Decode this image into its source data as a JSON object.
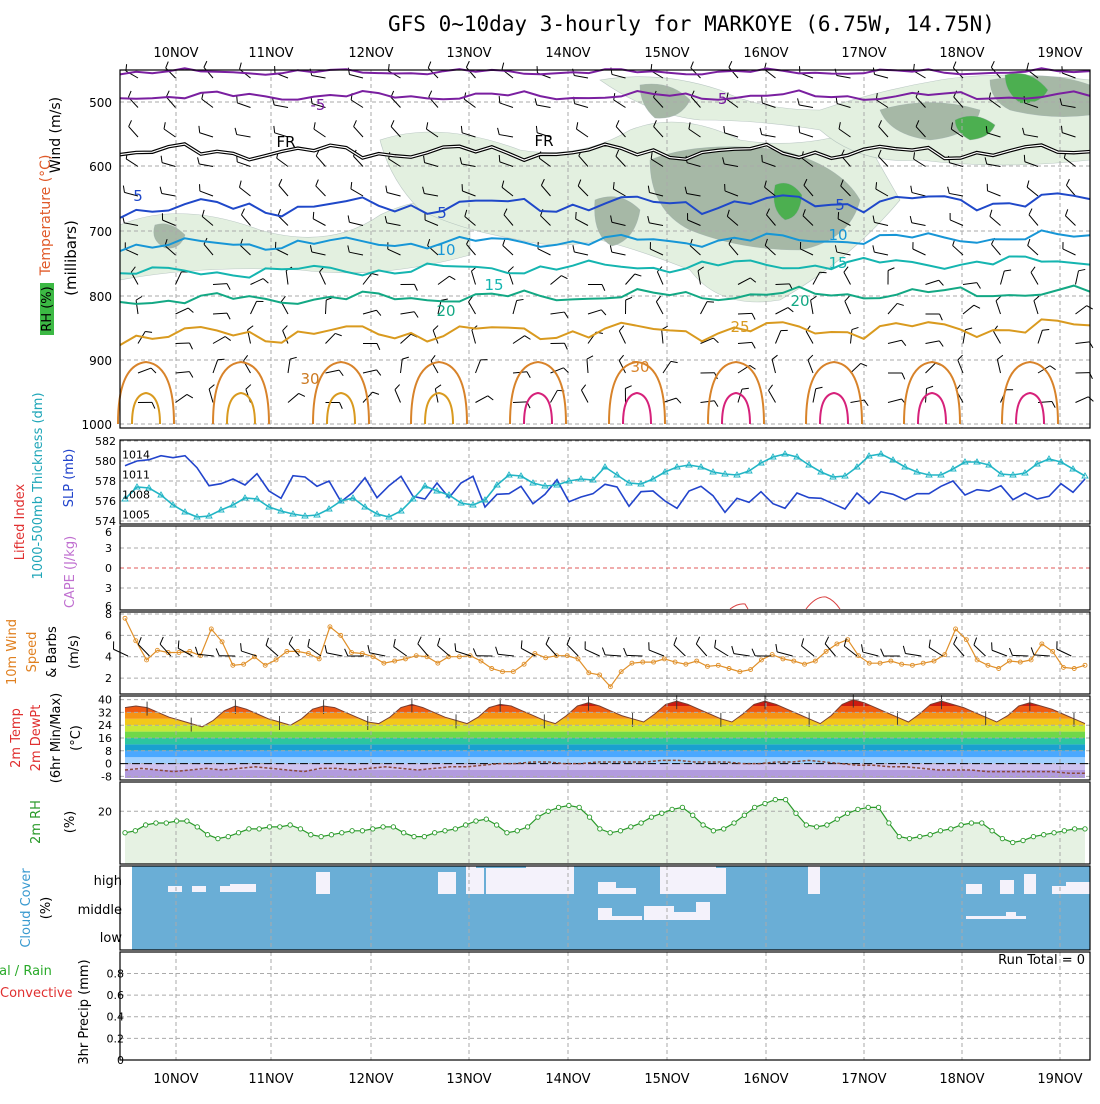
{
  "title": "GFS 0~10day 3-hourly for MARKOYE (6.75W, 14.75N)",
  "dates": [
    "10NOV",
    "11NOV",
    "12NOV",
    "13NOV",
    "14NOV",
    "15NOV",
    "16NOV",
    "17NOV",
    "18NOV",
    "19NOV"
  ],
  "colors": {
    "grid": "#aaaaaa",
    "rh_fill": "#e3f0e0",
    "rh_dark": "#a6b8a6",
    "green": "#4caf50",
    "sky": "#6aaed6",
    "white": "#f4f2fb"
  },
  "panels": {
    "upper": {
      "ylabel_wind": "Wind (m/s)",
      "ylabel_temp": "Temperature (°C)",
      "ylabel_rh": "RH (%)",
      "ylabel_mb": "(millibars)",
      "levels": [
        "500",
        "600",
        "700",
        "800",
        "900",
        "1000"
      ],
      "contour_labels": [
        {
          "t": "-5",
          "c": "#7a1fa0"
        },
        {
          "t": "-5",
          "c": "#7a1fa0"
        },
        {
          "t": "FR",
          "c": "#000000"
        },
        {
          "t": "FR",
          "c": "#000000"
        },
        {
          "t": "5",
          "c": "#1f48c9"
        },
        {
          "t": "5",
          "c": "#1f48c9"
        },
        {
          "t": "5",
          "c": "#1f48c9"
        },
        {
          "t": "10",
          "c": "#1796d6"
        },
        {
          "t": "10",
          "c": "#1796d6"
        },
        {
          "t": "15",
          "c": "#15b5b0"
        },
        {
          "t": "15",
          "c": "#15b5b0"
        },
        {
          "t": "20",
          "c": "#13a884"
        },
        {
          "t": "20",
          "c": "#13a884"
        },
        {
          "t": "25",
          "c": "#d99a1f"
        },
        {
          "t": "30",
          "c": "#d8832a"
        },
        {
          "t": "30",
          "c": "#cc7a22"
        }
      ]
    },
    "thickness": {
      "ylabel_left": "1000-500mb Thickness (dm)",
      "ylabel_right": "SLP (mb)",
      "left_ticks": [
        "582",
        "580",
        "578",
        "576",
        "574"
      ],
      "right_ticks": [
        "1014",
        "1011",
        "1008",
        "1005"
      ]
    },
    "cape": {
      "ylabel_li": "Lifted Index",
      "ylabel_cape": "CAPE (J/kg)",
      "ticks": [
        "6",
        "3",
        "0",
        "3",
        "6"
      ]
    },
    "wind10m": {
      "ylabel_a": "10m Wind",
      "ylabel_b": "Speed",
      "ylabel_c": "& Barbs",
      "ylabel_unit": "(m/s)",
      "ticks": [
        "8",
        "6",
        "4",
        "2"
      ]
    },
    "temp2m": {
      "ylabel_a": "2m Temp",
      "ylabel_b": "2m DewPt",
      "ylabel_c": "(6hr Min/Max)",
      "ylabel_unit": "(°C)",
      "ticks": [
        "40",
        "32",
        "24",
        "16",
        "8",
        "0",
        "-8"
      ]
    },
    "rh2m": {
      "ylabel": "2m RH",
      "ylabel_unit": "(%)",
      "ticks": [
        "20"
      ]
    },
    "cloud": {
      "ylabel": "Cloud Cover",
      "ylabel_unit": "(%)",
      "ticks": [
        "high",
        "middle",
        "low"
      ]
    },
    "precip": {
      "ylabel_a": "tal / Rain",
      "ylabel_b": "Convective",
      "ylabel_c": "3hr Precip (mm)",
      "run_total": "Run Total = 0",
      "ticks": [
        "0.8",
        "0.6",
        "0.4",
        "0.2",
        "0"
      ]
    }
  },
  "chart_data": [
    {
      "type": "line",
      "name": "1000-500mb thickness / SLP",
      "series": [
        {
          "name": "SLP (mb)",
          "color": "#2244cc",
          "axis": "right",
          "values": [
            1012.3,
            1013.0,
            1013.2,
            1013.8,
            1013.5,
            1013.8,
            1012.0,
            1009.3,
            1009.6,
            1010.3,
            1009.4,
            1011.1,
            1008.5,
            1007.4,
            1010.8,
            1010.6,
            1009.2,
            1010.0,
            1006.9,
            1008.3,
            1010.5,
            1007.5,
            1009.3,
            1010.7,
            1007.7,
            1007.3,
            1009.7,
            1007.5,
            1009.7,
            1010.7,
            1006.1,
            1008.0,
            1008.1,
            1009.2,
            1006.6,
            1008.0,
            1010.2,
            1006.9,
            1007.6,
            1008.1,
            1009.5,
            1009.1,
            1006.2,
            1008.4,
            1008.5,
            1007.0,
            1005.9,
            1008.5,
            1009.2,
            1007.8,
            1005.3,
            1007.4,
            1006.8,
            1008.4,
            1006.6,
            1005.9,
            1008.2,
            1007.5,
            1007.4,
            1006.6,
            1005.8,
            1008.2,
            1006.6,
            1008.4,
            1008.0,
            1007.2,
            1008.1,
            1008.1,
            1009.2,
            1010.0,
            1007.9,
            1008.7,
            1008.5,
            1009.3,
            1007.2,
            1008.2,
            1007.3,
            1007.7,
            1009.6,
            1008.3,
            1010.3
          ]
        },
        {
          "name": "1000-500mb thickness (dm)",
          "color": "#22b5c5",
          "axis": "left",
          "values": [
            576.2,
            577.4,
            577.3,
            576.6,
            575.6,
            574.9,
            574.4,
            574.5,
            575.1,
            575.6,
            576.3,
            576.2,
            575.4,
            575.0,
            574.7,
            574.5,
            574.6,
            575.2,
            576.0,
            576.3,
            575.4,
            574.7,
            574.4,
            575.0,
            576.2,
            577.5,
            577.0,
            576.6,
            575.8,
            575.6,
            576.1,
            577.6,
            578.6,
            578.5,
            577.8,
            577.5,
            577.6,
            578.0,
            578.2,
            578.1,
            579.4,
            578.6,
            577.8,
            577.7,
            578.2,
            578.9,
            579.4,
            579.6,
            579.4,
            578.9,
            578.7,
            578.6,
            579.0,
            579.8,
            580.4,
            580.7,
            580.4,
            579.6,
            578.9,
            578.4,
            578.5,
            579.4,
            580.5,
            580.7,
            580.1,
            579.4,
            578.9,
            578.6,
            578.6,
            579.2,
            579.9,
            579.9,
            579.6,
            578.7,
            578.6,
            578.8,
            579.7,
            580.2,
            579.9,
            579.2,
            578.5
          ]
        }
      ],
      "ylim_left": [
        574,
        582
      ],
      "ylim_right": [
        1004,
        1016
      ]
    },
    {
      "type": "line",
      "name": "10m wind speed",
      "series": [
        {
          "name": "Speed (m/s)",
          "color": "#e0902a",
          "values": [
            7.6,
            5.5,
            3.7,
            4.6,
            4.4,
            4.4,
            4.5,
            4.1,
            6.6,
            5.4,
            3.2,
            3.3,
            4.0,
            3.2,
            3.7,
            4.5,
            4.5,
            4.3,
            3.8,
            6.8,
            6.0,
            4.4,
            4.3,
            4.0,
            3.4,
            3.6,
            3.8,
            4.1,
            4.0,
            3.4,
            4.0,
            4.0,
            4.1,
            3.6,
            2.9,
            2.6,
            2.6,
            3.3,
            4.3,
            3.9,
            4.1,
            4.1,
            3.8,
            2.5,
            2.3,
            1.2,
            2.6,
            3.4,
            3.5,
            3.5,
            3.8,
            3.5,
            3.3,
            3.6,
            3.1,
            3.2,
            2.9,
            2.6,
            2.8,
            3.7,
            4.2,
            3.8,
            3.6,
            3.3,
            3.6,
            4.5,
            5.2,
            5.6,
            4.1,
            3.4,
            3.4,
            3.6,
            3.3,
            3.2,
            3.4,
            3.6,
            4.2,
            6.6,
            5.6,
            3.7,
            3.2,
            2.9,
            3.6,
            3.5,
            3.7,
            5.2,
            4.5,
            3.0,
            2.9,
            3.2
          ]
        }
      ],
      "ylim": [
        0.7,
        8
      ]
    },
    {
      "type": "area",
      "name": "2m temperature",
      "series": [
        {
          "name": "2m Temp (°C)",
          "values": [
            35,
            36,
            35,
            32,
            29,
            27,
            25,
            23,
            27,
            33,
            36,
            34,
            31,
            28,
            26,
            24,
            28,
            34,
            36,
            35,
            32,
            29,
            26,
            25,
            29,
            35,
            37,
            35,
            32,
            29,
            27,
            25,
            29,
            35,
            37,
            36,
            33,
            30,
            27,
            25,
            30,
            36,
            38,
            36,
            33,
            30,
            28,
            26,
            31,
            37,
            39,
            37,
            34,
            31,
            28,
            26,
            31,
            37,
            39,
            37,
            34,
            31,
            28,
            25,
            30,
            37,
            40,
            38,
            35,
            32,
            29,
            26,
            31,
            37,
            39,
            37,
            35,
            32,
            29,
            26,
            30,
            36,
            38,
            36,
            34,
            31,
            28,
            25
          ]
        },
        {
          "name": "2m DewPt (°C)",
          "values": [
            -4,
            -3,
            -4,
            -5,
            -4,
            -3,
            -4,
            -3,
            -2,
            -3,
            -4,
            -5,
            -3,
            -3,
            -4,
            -3,
            -2,
            -3,
            -4,
            -3,
            -2,
            -2,
            -1,
            0,
            0,
            1,
            1,
            0,
            0,
            1,
            1,
            1,
            1,
            2,
            2,
            1,
            1,
            1,
            0,
            0,
            1,
            1,
            2,
            1,
            0,
            -1,
            -1,
            -2,
            -2,
            -3,
            -4,
            -4,
            -4,
            -5,
            -5,
            -5,
            -5,
            -5,
            -6,
            -6
          ]
        }
      ],
      "ylim": [
        -9,
        41
      ]
    },
    {
      "type": "area",
      "name": "2m RH",
      "series": [
        {
          "name": "2m RH (%)",
          "values": [
            9,
            10,
            13,
            14,
            14,
            15,
            15,
            12,
            8,
            6,
            7,
            9,
            11,
            11,
            12,
            12,
            13,
            11,
            8,
            7,
            8,
            9,
            10,
            10,
            11,
            12,
            12,
            9,
            7,
            7,
            9,
            10,
            11,
            13,
            15,
            16,
            13,
            9,
            10,
            12,
            17,
            20,
            22,
            23,
            22,
            17,
            11,
            9,
            10,
            12,
            14,
            17,
            19,
            21,
            22,
            18,
            13,
            10,
            11,
            14,
            18,
            22,
            24,
            26,
            26,
            19,
            13,
            12,
            13,
            16,
            19,
            21,
            22,
            22,
            14,
            7,
            6,
            7,
            8,
            10,
            11,
            13,
            14,
            14,
            10,
            6,
            4,
            5,
            7,
            8,
            9,
            10,
            11,
            11
          ]
        }
      ],
      "ylim": [
        -6,
        34
      ]
    },
    {
      "type": "bar",
      "name": "3hr precip",
      "series": [
        {
          "name": "3hr Precip (mm)",
          "values": []
        }
      ],
      "ylim": [
        0,
        1
      ]
    }
  ]
}
